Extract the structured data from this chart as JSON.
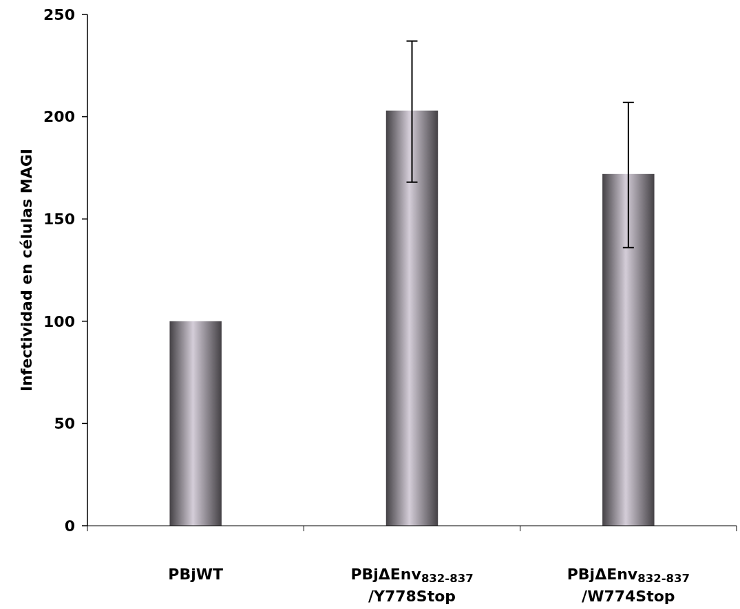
{
  "chart_data": {
    "type": "bar",
    "ylabel": "Infectividad en células MAGI",
    "categories": [
      "PBjWT",
      "PBjΔEnv$_{832-837}$\n/Y778Stop",
      "PBjΔEnv$_{832-837}$\n/W774Stop"
    ],
    "values": [
      100,
      203,
      172
    ],
    "color": "#d4cdd8",
    "errors": [
      null,
      [
        168,
        237
      ],
      [
        136,
        207
      ]
    ],
    "ylim": [
      0,
      250
    ],
    "yticks": [
      0,
      50,
      100,
      150,
      200,
      250
    ],
    "grid": false
  }
}
